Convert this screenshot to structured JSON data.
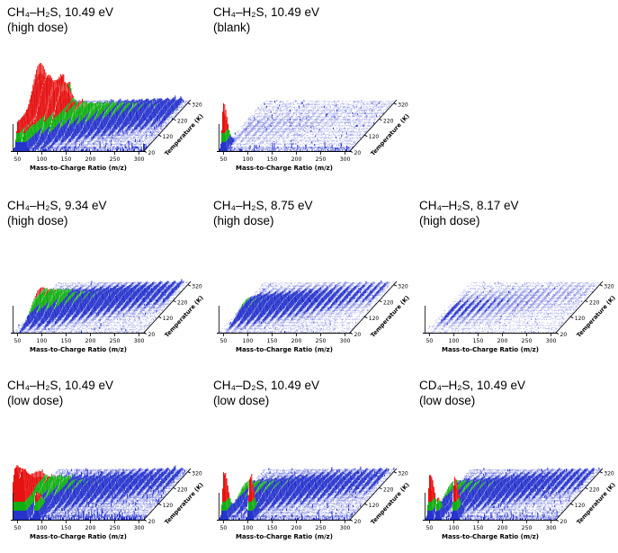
{
  "figure_title": "",
  "palette": {
    "low": "#2633cc",
    "mid": "#0faf0f",
    "high": "#e61111",
    "axis": "#000000",
    "background": "#ffffff"
  },
  "chart_data": [
    {
      "type": "3d_waterfall",
      "title": "CH₄–H₂S, 10.49 eV",
      "subtitle": "(high dose)",
      "xlabel": "Mass-to-Charge Ratio (m/z)",
      "x_ticks": [
        50,
        100,
        150,
        200,
        250,
        300
      ],
      "x_range": [
        40,
        310
      ],
      "depth_label": "Temperature (K)",
      "depth_ticks": [
        20,
        120,
        220,
        320
      ],
      "depth_range": [
        20,
        340
      ],
      "features": "Very intense desorption peaks (red) across m/z 50-300, strongest cluster at m/z 50-100 persisting over the whole temperature range; regularly spaced peak ridges about 14 m/z apart whose desorption temperature increases with mass.",
      "render": {
        "ridge": 1.0,
        "noise": 0.8,
        "left_boost": 1.7,
        "front_band": 1.2,
        "spikes": [
          {
            "mz": 50,
            "h": 0.85,
            "tw": 999,
            "sig": 3.0
          },
          {
            "mz": 63,
            "h": 0.6,
            "tw": 999,
            "sig": 3.0
          }
        ]
      }
    },
    {
      "type": "3d_waterfall",
      "title": "CH₄–H₂S, 10.49 eV",
      "subtitle": "(blank)",
      "xlabel": "Mass-to-Charge Ratio (m/z)",
      "x_ticks": [
        50,
        100,
        150,
        200,
        250,
        300
      ],
      "x_range": [
        40,
        310
      ],
      "depth_label": "Temperature (K)",
      "depth_ticks": [
        20,
        120,
        220,
        320
      ],
      "depth_range": [
        20,
        340
      ],
      "features": "Nearly empty spectrum; a single tall red spike near m/z 50 at the lowest temperatures plus faint blue baseline noise.",
      "render": {
        "ridge": 0.03,
        "noise": 0.5,
        "left_boost": 1.0,
        "front_band": 1.6,
        "spikes": [
          {
            "mz": 49,
            "h": 1.35,
            "tw": 26,
            "sig": 2.6
          }
        ]
      }
    },
    {
      "type": "3d_waterfall",
      "title": "CH₄–H₂S, 9.34 eV",
      "subtitle": "(high dose)",
      "xlabel": "Mass-to-Charge Ratio (m/z)",
      "x_ticks": [
        50,
        100,
        150,
        200,
        250,
        300
      ],
      "x_range": [
        40,
        310
      ],
      "depth_label": "Temperature (K)",
      "depth_ticks": [
        20,
        120,
        220,
        320
      ],
      "depth_range": [
        20,
        340
      ],
      "features": "Moderate intensity diagonal peak ridges (blue/green with few red tips) spanning m/z 80-300 at mid temperatures.",
      "render": {
        "ridge": 0.55,
        "noise": 0.5,
        "left_boost": 1.2,
        "front_band": 0.6,
        "spikes": []
      }
    },
    {
      "type": "3d_waterfall",
      "title": "CH₄–H₂S, 8.75 eV",
      "subtitle": "(high dose)",
      "xlabel": "Mass-to-Charge Ratio (m/z)",
      "x_ticks": [
        50,
        100,
        150,
        200,
        250,
        300
      ],
      "x_range": [
        40,
        310
      ],
      "depth_label": "Temperature (K)",
      "depth_ticks": [
        20,
        120,
        220,
        320
      ],
      "depth_range": [
        20,
        340
      ],
      "features": "Weak mostly blue diagonal streaks of desorption peaks across m/z 80-300.",
      "render": {
        "ridge": 0.33,
        "noise": 0.45,
        "left_boost": 1.0,
        "front_band": 0.6,
        "spikes": []
      }
    },
    {
      "type": "3d_waterfall",
      "title": "CH₄–H₂S, 8.17 eV",
      "subtitle": "(high dose)",
      "xlabel": "Mass-to-Charge Ratio (m/z)",
      "x_ticks": [
        50,
        100,
        150,
        200,
        250,
        300
      ],
      "x_range": [
        40,
        310
      ],
      "depth_label": "Temperature (K)",
      "depth_ticks": [
        20,
        120,
        220,
        320
      ],
      "depth_range": [
        20,
        340
      ],
      "features": "Essentially featureless; only very faint blue noise speckle.",
      "render": {
        "ridge": 0.09,
        "noise": 0.42,
        "left_boost": 1.0,
        "front_band": 0.5,
        "spikes": []
      }
    },
    {
      "type": "3d_waterfall",
      "title": "CH₄–H₂S, 10.49 eV",
      "subtitle": "(low dose)",
      "xlabel": "Mass-to-Charge Ratio (m/z)",
      "x_ticks": [
        50,
        100,
        150,
        200,
        250,
        300
      ],
      "x_range": [
        40,
        310
      ],
      "depth_label": "Temperature (K)",
      "depth_ticks": [
        20,
        120,
        220,
        320
      ],
      "depth_range": [
        20,
        340
      ],
      "features": "Large saturated red feature at m/z 45-90 at low temperature; weaker blue/green ridges out to m/z 300.",
      "render": {
        "ridge": 0.5,
        "noise": 0.9,
        "left_boost": 1.3,
        "front_band": 1.4,
        "spikes": [
          {
            "mz": 46,
            "h": 1.5,
            "tw": 70,
            "sig": 7.0
          },
          {
            "mz": 60,
            "h": 1.2,
            "tw": 55,
            "sig": 4.0
          },
          {
            "mz": 88,
            "h": 0.75,
            "tw": 40,
            "sig": 3.0
          }
        ]
      }
    },
    {
      "type": "3d_waterfall",
      "title": "CH₄–D₂S, 10.49 eV",
      "subtitle": "(low dose)",
      "xlabel": "Mass-to-Charge Ratio (m/z)",
      "x_ticks": [
        50,
        100,
        150,
        200,
        250,
        300
      ],
      "x_range": [
        40,
        310
      ],
      "depth_label": "Temperature (K)",
      "depth_ticks": [
        20,
        120,
        220,
        320
      ],
      "depth_range": [
        20,
        340
      ],
      "features": "Two tall red spikes near m/z 50 and m/z 105 at low temperature; moderate blue diagonal ridges across m/z 100-300.",
      "render": {
        "ridge": 0.45,
        "noise": 0.7,
        "left_boost": 1.0,
        "front_band": 1.2,
        "spikes": [
          {
            "mz": 50,
            "h": 1.4,
            "tw": 26,
            "sig": 2.8
          },
          {
            "mz": 104,
            "h": 1.25,
            "tw": 24,
            "sig": 2.8
          }
        ]
      }
    },
    {
      "type": "3d_waterfall",
      "title": "CD₄–H₂S, 10.49 eV",
      "subtitle": "(low dose)",
      "xlabel": "Mass-to-Charge Ratio (m/z)",
      "x_ticks": [
        50,
        100,
        150,
        200,
        250,
        300
      ],
      "x_range": [
        40,
        310
      ],
      "depth_label": "Temperature (K)",
      "depth_ticks": [
        20,
        120,
        220,
        320
      ],
      "depth_range": [
        20,
        340
      ],
      "features": "Tall red spikes near m/z 50 and m/z 100 plus a smaller green/red peak near m/z 66 at low temperature; blue diagonal ridges to m/z 300.",
      "render": {
        "ridge": 0.45,
        "noise": 0.7,
        "left_boost": 1.0,
        "front_band": 1.2,
        "spikes": [
          {
            "mz": 50,
            "h": 1.35,
            "tw": 26,
            "sig": 2.8
          },
          {
            "mz": 101,
            "h": 1.2,
            "tw": 24,
            "sig": 2.8
          },
          {
            "mz": 66,
            "h": 0.6,
            "tw": 24,
            "sig": 2.5
          }
        ]
      }
    }
  ]
}
